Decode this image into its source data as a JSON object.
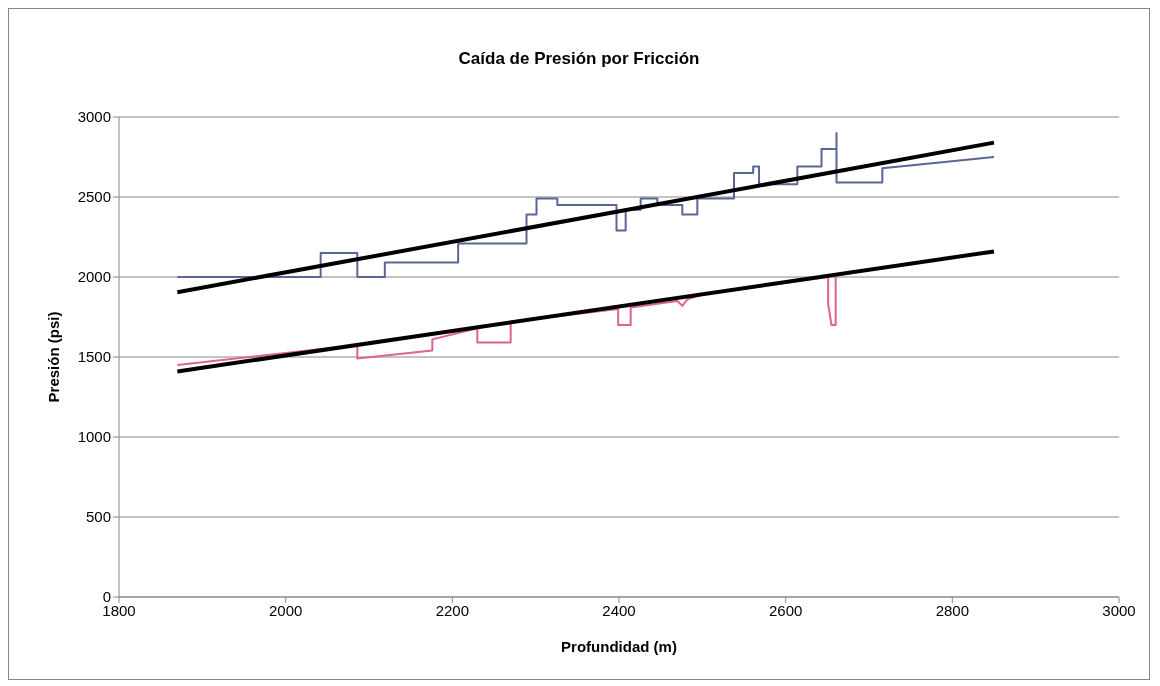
{
  "chart_data": {
    "type": "line",
    "title": "Caída de Presión por Fricción",
    "xlabel": "Profundidad (m)",
    "ylabel": "Presión (psi)",
    "xlim": [
      1800,
      3000
    ],
    "xticks": [
      1800,
      2000,
      2200,
      2400,
      2600,
      2800,
      3000
    ],
    "ylim": [
      0,
      3000
    ],
    "yticks": [
      0,
      500,
      1000,
      1500,
      2000,
      2500,
      3000
    ],
    "grid": "y",
    "marker": "none",
    "line_style": "solid",
    "series": [
      {
        "color": "#5b6596",
        "x": [
          1870,
          2042,
          2042,
          2086,
          2086,
          2119,
          2119,
          2207,
          2207,
          2289,
          2289,
          2301,
          2301,
          2326,
          2326,
          2397,
          2397,
          2408,
          2408,
          2426,
          2426,
          2446,
          2446,
          2476,
          2476,
          2494,
          2494,
          2538,
          2538,
          2561,
          2561,
          2568,
          2568,
          2614,
          2614,
          2643,
          2643,
          2661,
          2661,
          2661,
          2716,
          2716,
          2850
        ],
        "values": [
          2000,
          2000,
          2150,
          2150,
          2000,
          2000,
          2090,
          2090,
          2210,
          2210,
          2390,
          2390,
          2490,
          2490,
          2450,
          2450,
          2290,
          2290,
          2420,
          2420,
          2490,
          2490,
          2450,
          2450,
          2390,
          2390,
          2490,
          2490,
          2650,
          2650,
          2690,
          2690,
          2580,
          2580,
          2690,
          2690,
          2800,
          2800,
          2900,
          2590,
          2590,
          2680,
          2750
        ]
      },
      {
        "color": "#e0609a",
        "x": [
          1870,
          2086,
          2086,
          2086,
          2176,
          2176,
          2230,
          2230,
          2270,
          2270,
          2399,
          2399,
          2414,
          2414,
          2470,
          2476,
          2482,
          2500,
          2651,
          2651,
          2655,
          2660,
          2660
        ],
        "values": [
          1450,
          1575,
          1490,
          1490,
          1540,
          1610,
          1680,
          1590,
          1590,
          1720,
          1800,
          1700,
          1700,
          1810,
          1850,
          1820,
          1860,
          1890,
          2000,
          1830,
          1700,
          1700,
          2000
        ]
      },
      {
        "color": "#000000",
        "x": [
          1870,
          2850
        ],
        "values": [
          1905,
          2840
        ]
      },
      {
        "color": "#000000",
        "x": [
          1870,
          2850
        ],
        "values": [
          1410,
          2160
        ]
      }
    ]
  }
}
